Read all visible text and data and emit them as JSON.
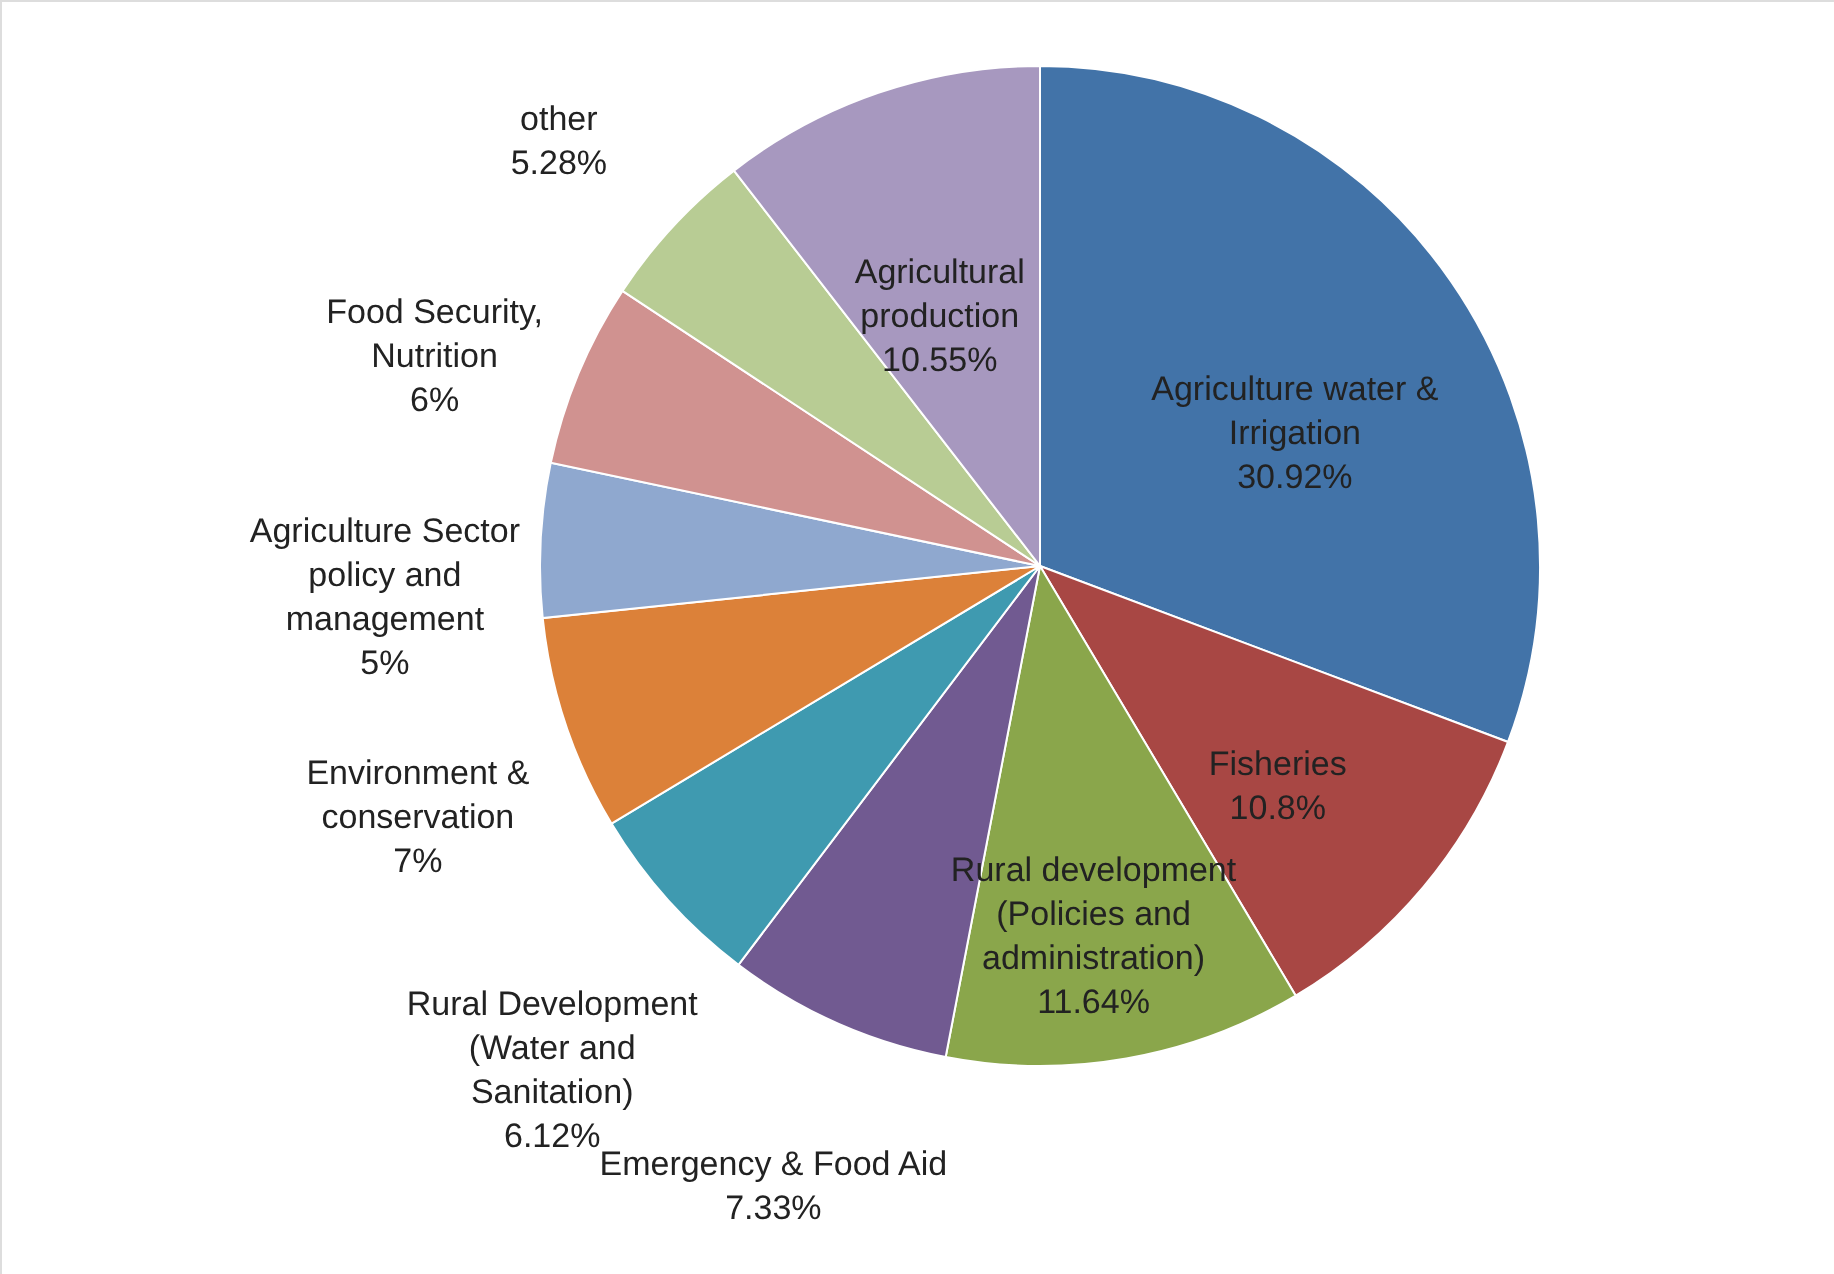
{
  "chart_data": {
    "type": "pie",
    "categories": [
      "Agriculture water & Irrigation",
      "Fisheries",
      "Rural development (Policies and administration)",
      "Emergency & Food Aid",
      "Rural Development (Water and Sanitation)",
      "Environment & conservation",
      "Agriculture Sector policy and management",
      "Food Security, Nutrition",
      "other",
      "Agricultural production"
    ],
    "values": [
      30.92,
      10.8,
      11.64,
      7.33,
      6.12,
      7,
      5,
      6,
      5.28,
      10.55
    ],
    "value_labels": [
      "30.92%",
      "10.8%",
      "11.64%",
      "7.33%",
      "6.12%",
      "7%",
      "5%",
      "6%",
      "5.28%",
      "10.55%"
    ],
    "colors": [
      "#4273a8",
      "#a84744",
      "#8aa64b",
      "#715a91",
      "#3f9ab0",
      "#dc8139",
      "#8fa8cf",
      "#d09290",
      "#b8cc94",
      "#a798bf"
    ]
  }
}
